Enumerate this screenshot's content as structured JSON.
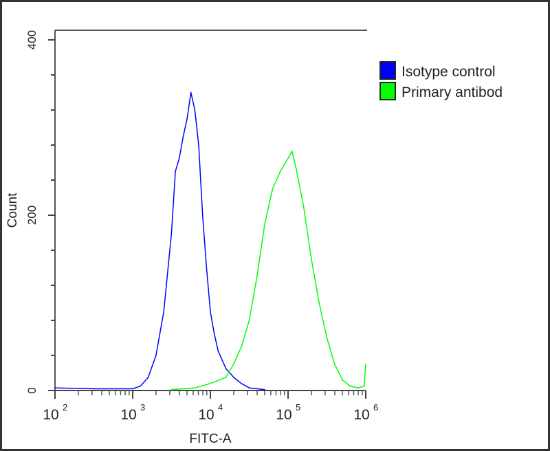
{
  "chart_data": {
    "type": "line",
    "title": "",
    "xlabel": "FITC-A",
    "ylabel": "Count",
    "xscale": "log",
    "xlim": [
      100,
      1000000
    ],
    "ylim": [
      0,
      411
    ],
    "xticks": [
      {
        "base": "10",
        "exp": "2"
      },
      {
        "base": "10",
        "exp": "3"
      },
      {
        "base": "10",
        "exp": "4"
      },
      {
        "base": "10",
        "exp": "5"
      },
      {
        "base": "10",
        "exp": "6"
      }
    ],
    "yticks": [
      "0",
      "200",
      "400"
    ],
    "grid": false,
    "legend_placement": "right",
    "series": [
      {
        "name": "Isotype control",
        "color": "#0000ff",
        "points": [
          [
            100,
            3
          ],
          [
            316,
            2
          ],
          [
            1000,
            2
          ],
          [
            1259,
            5
          ],
          [
            1585,
            15
          ],
          [
            1995,
            40
          ],
          [
            2512,
            90
          ],
          [
            3162,
            180
          ],
          [
            3548,
            250
          ],
          [
            3981,
            265
          ],
          [
            4467,
            290
          ],
          [
            5012,
            310
          ],
          [
            5623,
            340
          ],
          [
            6310,
            320
          ],
          [
            7079,
            280
          ],
          [
            7943,
            200
          ],
          [
            8913,
            140
          ],
          [
            10000,
            90
          ],
          [
            11220,
            65
          ],
          [
            12589,
            45
          ],
          [
            15849,
            25
          ],
          [
            19953,
            15
          ],
          [
            25119,
            8
          ],
          [
            31623,
            3
          ],
          [
            50119,
            1
          ]
        ]
      },
      {
        "name": "Primary antibod",
        "color": "#00ff00",
        "points": [
          [
            3162,
            1
          ],
          [
            6310,
            3
          ],
          [
            10000,
            8
          ],
          [
            15849,
            15
          ],
          [
            19953,
            30
          ],
          [
            25119,
            50
          ],
          [
            31623,
            80
          ],
          [
            39811,
            130
          ],
          [
            50119,
            190
          ],
          [
            63096,
            230
          ],
          [
            79433,
            250
          ],
          [
            100000,
            265
          ],
          [
            112202,
            273
          ],
          [
            125893,
            255
          ],
          [
            158489,
            210
          ],
          [
            199526,
            150
          ],
          [
            251189,
            100
          ],
          [
            316228,
            60
          ],
          [
            398107,
            30
          ],
          [
            501187,
            12
          ],
          [
            630957,
            5
          ],
          [
            794328,
            3
          ],
          [
            954993,
            5
          ],
          [
            1000000,
            30
          ]
        ]
      }
    ]
  }
}
